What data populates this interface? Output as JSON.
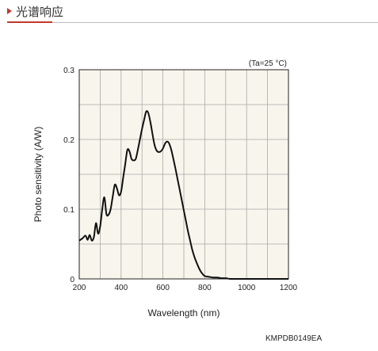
{
  "header": {
    "title": "光谱响应"
  },
  "chart_data": {
    "type": "line",
    "xlabel": "Wavelength (nm)",
    "ylabel": "Photo sensitivity (A/W)",
    "annotation": "(Ta=25 °C)",
    "xlim": [
      200,
      1200
    ],
    "ylim": [
      0,
      0.3
    ],
    "xticks": [
      "200",
      "400",
      "600",
      "800",
      "1000",
      "1200"
    ],
    "yticks": [
      "0",
      "0.1",
      "0.2",
      "0.3"
    ],
    "grid": true,
    "series": [
      {
        "x": [
          200,
          215,
          230,
          240,
          250,
          260,
          270,
          280,
          290,
          300,
          310,
          320,
          330,
          340,
          350,
          360,
          370,
          380,
          390,
          400,
          410,
          420,
          430,
          440,
          450,
          460,
          470,
          480,
          490,
          500,
          510,
          520,
          530,
          540,
          550,
          560,
          570,
          580,
          590,
          600,
          610,
          620,
          630,
          640,
          650,
          660,
          670,
          680,
          690,
          700,
          710,
          720,
          730,
          740,
          750,
          760,
          770,
          780,
          790,
          800,
          820,
          840,
          860,
          880,
          900,
          920,
          940,
          960,
          980,
          1000,
          1020,
          1040,
          1060,
          1080,
          1100,
          1120,
          1140,
          1160,
          1180,
          1200
        ],
        "values": [
          0.055,
          0.058,
          0.062,
          0.056,
          0.063,
          0.055,
          0.06,
          0.08,
          0.065,
          0.075,
          0.1,
          0.117,
          0.093,
          0.092,
          0.1,
          0.118,
          0.135,
          0.13,
          0.12,
          0.125,
          0.145,
          0.165,
          0.185,
          0.183,
          0.172,
          0.17,
          0.172,
          0.185,
          0.2,
          0.215,
          0.228,
          0.24,
          0.238,
          0.225,
          0.208,
          0.192,
          0.184,
          0.182,
          0.183,
          0.187,
          0.194,
          0.197,
          0.194,
          0.185,
          0.172,
          0.158,
          0.143,
          0.128,
          0.113,
          0.098,
          0.083,
          0.068,
          0.055,
          0.042,
          0.032,
          0.024,
          0.017,
          0.011,
          0.007,
          0.004,
          0.003,
          0.002,
          0.002,
          0.001,
          0.001,
          0.0,
          0.0,
          0.0,
          0.0,
          0.0,
          0.0,
          0.0,
          0.0,
          0.0,
          0.0,
          0.0,
          0.0,
          0.0,
          0.0,
          0.0
        ]
      }
    ]
  },
  "footer": {
    "code": "KMPDB0149EA"
  }
}
